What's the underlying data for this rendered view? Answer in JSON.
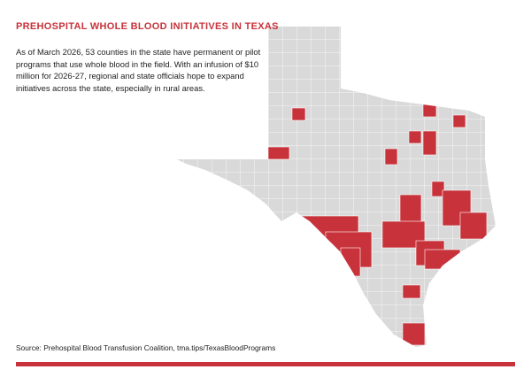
{
  "title": "PREHOSPITAL WHOLE BLOOD INITIATIVES IN TEXAS",
  "description": "As of March 2026, 53 counties in the state have permanent or pilot programs that use whole blood in the field. With an infusion of $10 million for 2026-27, regional and state officials hope to expand initiatives across the state, especially in rural areas.",
  "source": "Source: Prehospital Blood Transfusion Coalition, tma.tips/TexasBloodPrograms"
}
